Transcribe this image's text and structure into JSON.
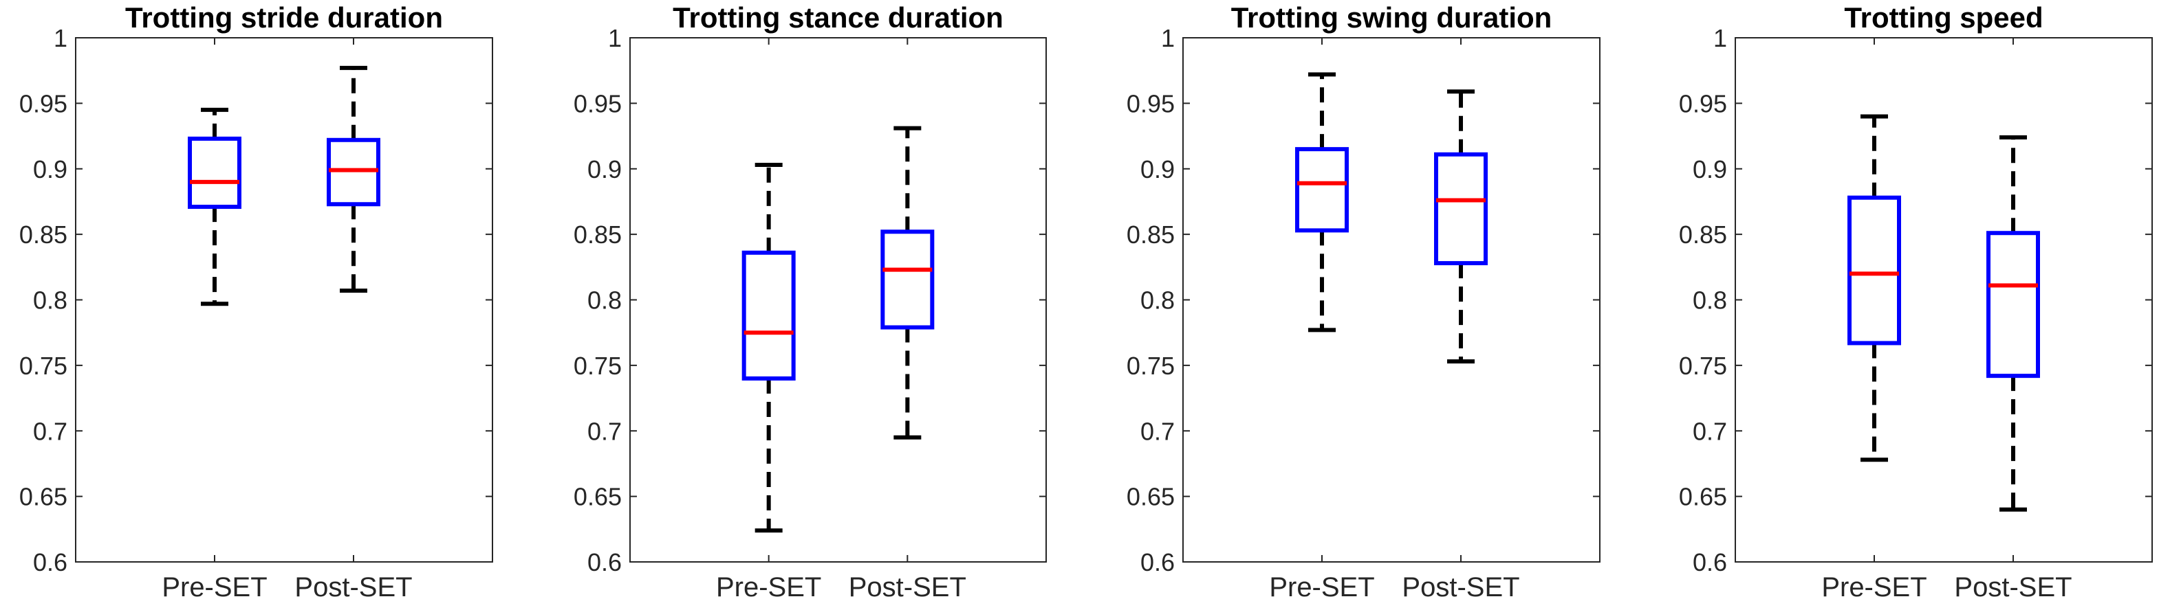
{
  "chart_data": [
    {
      "type": "box",
      "title": "Trotting stride duration",
      "categories": [
        "Pre-SET",
        "Post-SET"
      ],
      "ylim": [
        0.6,
        1
      ],
      "yticks": [
        "0.6",
        "0.65",
        "0.7",
        "0.75",
        "0.8",
        "0.85",
        "0.9",
        "0.95",
        "1"
      ],
      "boxes": [
        {
          "min": 0.797,
          "q1": 0.871,
          "median": 0.89,
          "q3": 0.923,
          "max": 0.945
        },
        {
          "min": 0.807,
          "q1": 0.873,
          "median": 0.899,
          "q3": 0.922,
          "max": 0.977
        }
      ]
    },
    {
      "type": "box",
      "title": "Trotting stance duration",
      "categories": [
        "Pre-SET",
        "Post-SET"
      ],
      "ylim": [
        0.6,
        1
      ],
      "yticks": [
        "0.6",
        "0.65",
        "0.7",
        "0.75",
        "0.8",
        "0.85",
        "0.9",
        "0.95",
        "1"
      ],
      "boxes": [
        {
          "min": 0.624,
          "q1": 0.74,
          "median": 0.775,
          "q3": 0.836,
          "max": 0.903
        },
        {
          "min": 0.695,
          "q1": 0.779,
          "median": 0.823,
          "q3": 0.852,
          "max": 0.931
        }
      ]
    },
    {
      "type": "box",
      "title": "Trotting swing duration",
      "categories": [
        "Pre-SET",
        "Post-SET"
      ],
      "ylim": [
        0.6,
        1
      ],
      "yticks": [
        "0.6",
        "0.65",
        "0.7",
        "0.75",
        "0.8",
        "0.85",
        "0.9",
        "0.95",
        "1"
      ],
      "boxes": [
        {
          "min": 0.777,
          "q1": 0.853,
          "median": 0.889,
          "q3": 0.915,
          "max": 0.972
        },
        {
          "min": 0.753,
          "q1": 0.828,
          "median": 0.876,
          "q3": 0.911,
          "max": 0.959
        }
      ]
    },
    {
      "type": "box",
      "title": "Trotting speed",
      "categories": [
        "Pre-SET",
        "Post-SET"
      ],
      "ylim": [
        0.6,
        1
      ],
      "yticks": [
        "0.6",
        "0.65",
        "0.7",
        "0.75",
        "0.8",
        "0.85",
        "0.9",
        "0.95",
        "1"
      ],
      "boxes": [
        {
          "min": 0.678,
          "q1": 0.767,
          "median": 0.82,
          "q3": 0.878,
          "max": 0.94
        },
        {
          "min": 0.64,
          "q1": 0.742,
          "median": 0.811,
          "q3": 0.851,
          "max": 0.924
        }
      ]
    }
  ],
  "colors": {
    "box": "#0000ff",
    "median": "#ff0000",
    "whisker": "#000000",
    "axis": "#262626"
  }
}
